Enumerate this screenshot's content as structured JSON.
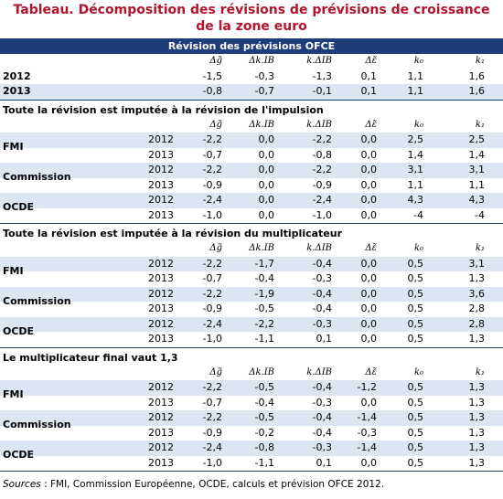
{
  "title": [
    "Tableau. Décomposition des révisions de prévisions de croissance",
    "de la zone euro"
  ],
  "first_section": {
    "heading": "Révision des prévisions OFCE",
    "headers": [
      "Δg̃",
      "Δk.IB",
      "k.ΔIB",
      "Δε̃",
      "k₀",
      "k₁"
    ],
    "rows": [
      {
        "year": "2012",
        "values": [
          "-1,5",
          "-0,3",
          "-1,3",
          "0,1",
          "1,1",
          "1,6"
        ]
      },
      {
        "year": "2013",
        "values": [
          "-0,8",
          "-0,7",
          "-0,1",
          "0,1",
          "1,1",
          "1,6"
        ]
      }
    ]
  },
  "sections": [
    {
      "title": "Toute la révision est imputée à la révision de l'impulsion",
      "headers": [
        "Δg̃",
        "Δk.IB",
        "k.ΔIB",
        "Δε̃",
        "k₀",
        "k₁"
      ],
      "groups": [
        {
          "name": "FMI",
          "rows": [
            {
              "year": "2012",
              "values": [
                "-2,2",
                "0,0",
                "-2,2",
                "0,0",
                "2,5",
                "2,5"
              ]
            },
            {
              "year": "2013",
              "values": [
                "-0,7",
                "0,0",
                "-0,8",
                "0,0",
                "1,4",
                "1,4"
              ]
            }
          ]
        },
        {
          "name": "Commission",
          "rows": [
            {
              "year": "2012",
              "values": [
                "-2,2",
                "0,0",
                "-2,2",
                "0,0",
                "3,1",
                "3,1"
              ]
            },
            {
              "year": "2013",
              "values": [
                "-0,9",
                "0,0",
                "-0,9",
                "0,0",
                "1,1",
                "1,1"
              ]
            }
          ]
        },
        {
          "name": "OCDE",
          "rows": [
            {
              "year": "2012",
              "values": [
                "-2,4",
                "0,0",
                "-2,4",
                "0,0",
                "4,3",
                "4,3"
              ]
            },
            {
              "year": "2013",
              "values": [
                "-1,0",
                "0,0",
                "-1,0",
                "0,0",
                "-4",
                "-4"
              ]
            }
          ]
        }
      ]
    },
    {
      "title": "Toute la révision est imputée à la révision du multiplicateur",
      "headers": [
        "Δg̃",
        "Δk.IB",
        "k.ΔIB",
        "Δε̃",
        "k₀",
        "k₁"
      ],
      "groups": [
        {
          "name": "FMI",
          "rows": [
            {
              "year": "2012",
              "values": [
                "-2,2",
                "-1,7",
                "-0,4",
                "0,0",
                "0,5",
                "3,1"
              ]
            },
            {
              "year": "2013",
              "values": [
                "-0,7",
                "-0,4",
                "-0,3",
                "0,0",
                "0,5",
                "1,3"
              ]
            }
          ]
        },
        {
          "name": "Commission",
          "rows": [
            {
              "year": "2012",
              "values": [
                "-2,2",
                "-1,9",
                "-0,4",
                "0,0",
                "0,5",
                "3,6"
              ]
            },
            {
              "year": "2013",
              "values": [
                "-0,9",
                "-0,5",
                "-0,4",
                "0,0",
                "0,5",
                "2,8"
              ]
            }
          ]
        },
        {
          "name": "OCDE",
          "rows": [
            {
              "year": "2012",
              "values": [
                "-2,4",
                "-2,2",
                "-0,3",
                "0,0",
                "0,5",
                "2,8"
              ]
            },
            {
              "year": "2013",
              "values": [
                "-1,0",
                "-1,1",
                "0,1",
                "0,0",
                "0,5",
                "1,3"
              ]
            }
          ]
        }
      ]
    },
    {
      "title": "Le multiplicateur final vaut 1,3",
      "headers": [
        "Δg̃",
        "Δk.IB",
        "k.ΔIB",
        "Δε̃",
        "k₀",
        "k₁"
      ],
      "groups": [
        {
          "name": "FMI",
          "rows": [
            {
              "year": "2012",
              "values": [
                "-2,2",
                "-0,5",
                "-0,4",
                "-1,2",
                "0,5",
                "1,3"
              ]
            },
            {
              "year": "2013",
              "values": [
                "-0,7",
                "-0,4",
                "-0,3",
                "0,0",
                "0,5",
                "1,3"
              ]
            }
          ]
        },
        {
          "name": "Commission",
          "rows": [
            {
              "year": "2012",
              "values": [
                "-2,2",
                "-0,5",
                "-0,4",
                "-1,4",
                "0,5",
                "1,3"
              ]
            },
            {
              "year": "2013",
              "values": [
                "-0,9",
                "-0,2",
                "-0,4",
                "-0,3",
                "0,5",
                "1,3"
              ]
            }
          ]
        },
        {
          "name": "OCDE",
          "rows": [
            {
              "year": "2012",
              "values": [
                "-2,4",
                "-0,8",
                "-0,3",
                "-1,4",
                "0,5",
                "1,3"
              ]
            },
            {
              "year": "2013",
              "values": [
                "-1,0",
                "-1,1",
                "0,1",
                "0,0",
                "0,5",
                "1,3"
              ]
            }
          ]
        }
      ]
    }
  ],
  "source": {
    "label": "Sources",
    "text": " : FMI, Commission Européenne, OCDE, calculs et prévision OFCE 2012."
  }
}
